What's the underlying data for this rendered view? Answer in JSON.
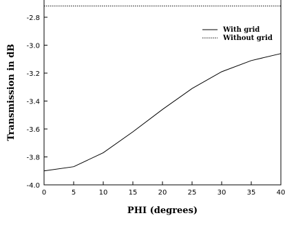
{
  "chart_data": {
    "type": "line",
    "title": "",
    "xlabel": "PHI (degrees)",
    "ylabel": "Transmission in dB",
    "xlim": [
      0,
      40
    ],
    "ylim": [
      -4.0,
      -2.7
    ],
    "x_ticks": [
      0,
      5,
      10,
      15,
      20,
      25,
      30,
      35,
      40
    ],
    "y_ticks": [
      -4.0,
      -3.8,
      -3.6,
      -3.4,
      -3.2,
      -3.0,
      -2.8
    ],
    "x_tick_labels": [
      "0",
      "5",
      "10",
      "15",
      "20",
      "25",
      "30",
      "35",
      "40"
    ],
    "y_tick_labels": [
      "-4.0",
      "-3.8",
      "-3.6",
      "-3.4",
      "-3.2",
      "-3.0",
      "-2.8"
    ],
    "grid": false,
    "legend_position": "top-right",
    "series": [
      {
        "name": "With grid",
        "style": "solid",
        "x": [
          0,
          5,
          10,
          15,
          20,
          25,
          30,
          35,
          40
        ],
        "y": [
          -3.9,
          -3.87,
          -3.77,
          -3.62,
          -3.46,
          -3.31,
          -3.19,
          -3.11,
          -3.06
        ]
      },
      {
        "name": "Without grid",
        "style": "dotted",
        "x": [
          0,
          40
        ],
        "y": [
          -2.72,
          -2.72
        ]
      }
    ]
  }
}
